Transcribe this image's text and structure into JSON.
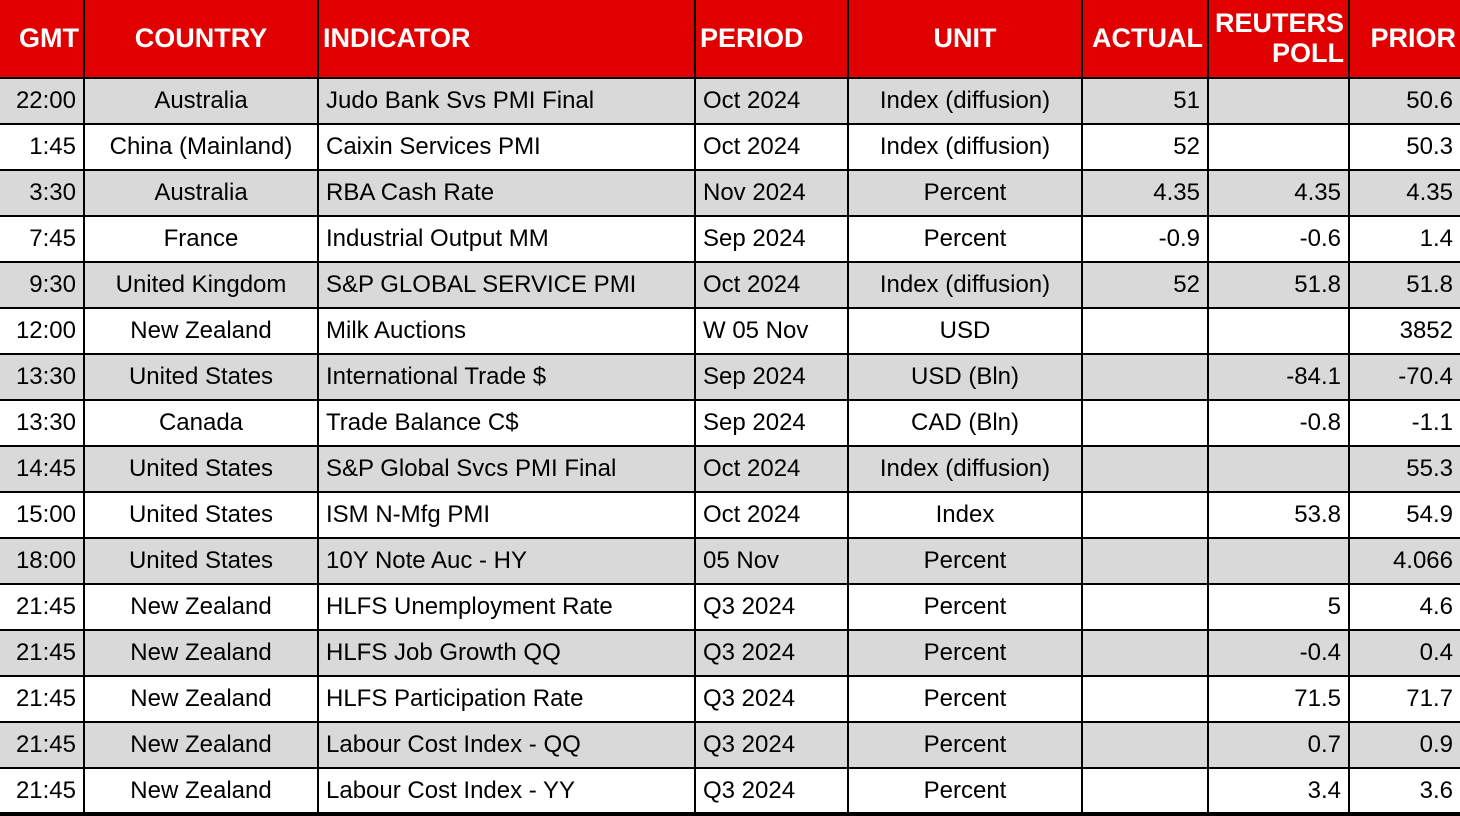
{
  "colors": {
    "header_bg": "#e00000",
    "header_text": "#ffffff",
    "row_alt_bg": "#d9d9d9",
    "row_bg": "#ffffff",
    "border": "#000000",
    "body_text": "#000000"
  },
  "chart_data": {
    "type": "table",
    "columns": [
      "GMT",
      "COUNTRY",
      "INDICATOR",
      "PERIOD",
      "UNIT",
      "ACTUAL",
      "REUTERS POLL",
      "PRIOR"
    ],
    "rows": [
      [
        "22:00",
        "Australia",
        "Judo Bank Svs PMI Final",
        "Oct 2024",
        "Index (diffusion)",
        "51",
        "",
        "50.6"
      ],
      [
        "1:45",
        "China (Mainland)",
        "Caixin Services PMI",
        "Oct 2024",
        "Index (diffusion)",
        "52",
        "",
        "50.3"
      ],
      [
        "3:30",
        "Australia",
        "RBA Cash Rate",
        "Nov 2024",
        "Percent",
        "4.35",
        "4.35",
        "4.35"
      ],
      [
        "7:45",
        "France",
        "Industrial Output MM",
        "Sep 2024",
        "Percent",
        "-0.9",
        "-0.6",
        "1.4"
      ],
      [
        "9:30",
        "United Kingdom",
        "S&P GLOBAL SERVICE PMI",
        "Oct 2024",
        "Index (diffusion)",
        "52",
        "51.8",
        "51.8"
      ],
      [
        "12:00",
        "New Zealand",
        "Milk Auctions",
        "W 05 Nov",
        "USD",
        "",
        "",
        "3852"
      ],
      [
        "13:30",
        "United States",
        "International Trade $",
        "Sep 2024",
        "USD (Bln)",
        "",
        "-84.1",
        "-70.4"
      ],
      [
        "13:30",
        "Canada",
        "Trade Balance C$",
        "Sep 2024",
        "CAD (Bln)",
        "",
        "-0.8",
        "-1.1"
      ],
      [
        "14:45",
        "United States",
        "S&P Global Svcs PMI Final",
        "Oct 2024",
        "Index (diffusion)",
        "",
        "",
        "55.3"
      ],
      [
        "15:00",
        "United States",
        "ISM N-Mfg PMI",
        "Oct 2024",
        "Index",
        "",
        "53.8",
        "54.9"
      ],
      [
        "18:00",
        "United States",
        "10Y Note Auc - HY",
        "05 Nov",
        "Percent",
        "",
        "",
        "4.066"
      ],
      [
        "21:45",
        "New Zealand",
        "HLFS Unemployment Rate",
        "Q3 2024",
        "Percent",
        "",
        "5",
        "4.6"
      ],
      [
        "21:45",
        "New Zealand",
        "HLFS Job Growth QQ",
        "Q3 2024",
        "Percent",
        "",
        "-0.4",
        "0.4"
      ],
      [
        "21:45",
        "New Zealand",
        "HLFS Participation Rate",
        "Q3 2024",
        "Percent",
        "",
        "71.5",
        "71.7"
      ],
      [
        "21:45",
        "New Zealand",
        "Labour Cost Index - QQ",
        "Q3 2024",
        "Percent",
        "",
        "0.7",
        "0.9"
      ],
      [
        "21:45",
        "New Zealand",
        "Labour Cost Index - YY",
        "Q3 2024",
        "Percent",
        "",
        "3.4",
        "3.6"
      ]
    ]
  }
}
